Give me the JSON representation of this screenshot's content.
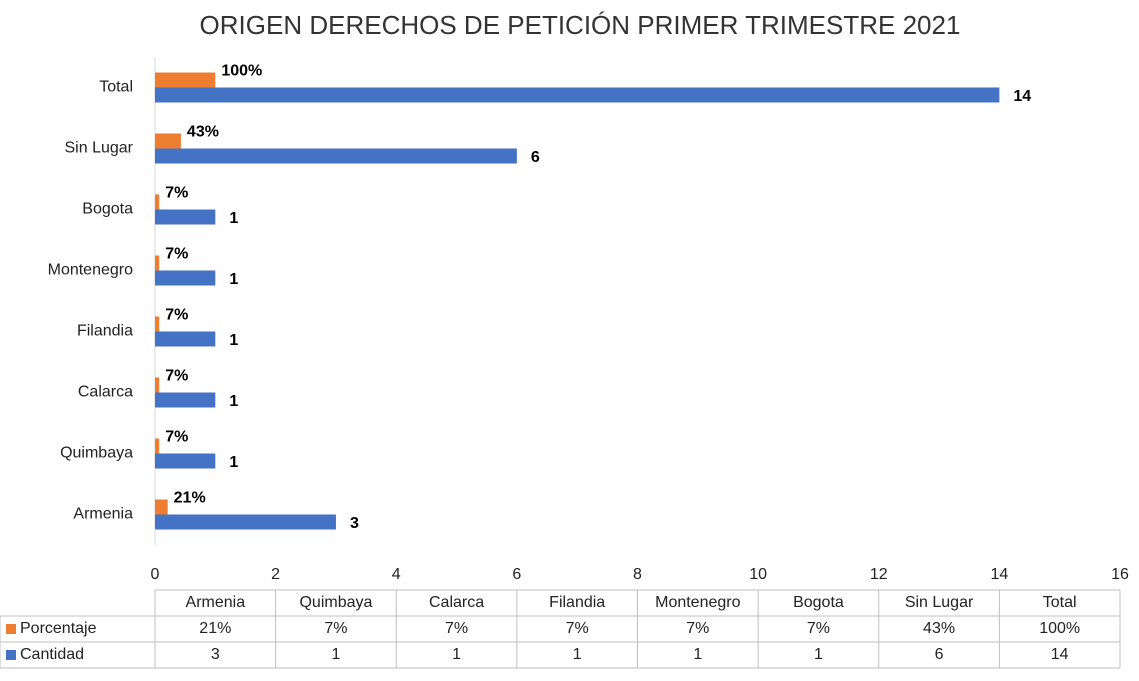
{
  "chart_data": {
    "type": "bar",
    "orientation": "horizontal",
    "title": "ORIGEN DERECHOS DE PETICIÓN PRIMER TRIMESTRE 2021",
    "categories": [
      "Armenia",
      "Quimbaya",
      "Calarca",
      "Filandia",
      "Montenegro",
      "Bogota",
      "Sin Lugar",
      "Total"
    ],
    "series": [
      {
        "name": "Porcentaje",
        "color": "#ed7d31",
        "values": [
          0.21,
          0.07,
          0.07,
          0.07,
          0.07,
          0.07,
          0.43,
          1
        ],
        "value_labels": [
          "21%",
          "7%",
          "7%",
          "7%",
          "7%",
          "7%",
          "43%",
          "100%"
        ]
      },
      {
        "name": "Cantidad",
        "color": "#4472c4",
        "values": [
          3,
          1,
          1,
          1,
          1,
          1,
          6,
          14
        ]
      }
    ],
    "xlim": [
      0,
      16
    ],
    "xticks": [
      0,
      2,
      4,
      6,
      8,
      10,
      12,
      14,
      16
    ],
    "grid": false,
    "data_table": true
  }
}
